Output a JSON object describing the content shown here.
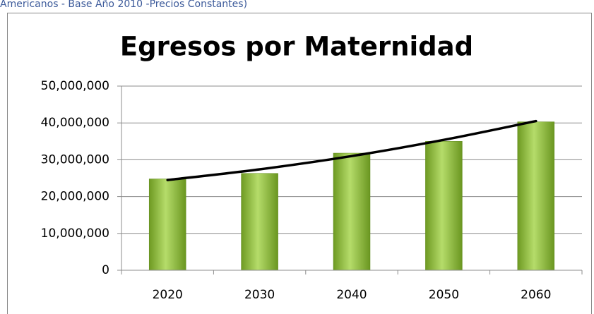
{
  "chart_data": {
    "type": "bar",
    "header": "Americanos - Base Año 2010 -Precios Constantes)",
    "title": "Egresos por Maternidad",
    "categories": [
      "2020",
      "2030",
      "2040",
      "2050",
      "2060"
    ],
    "values": [
      24800000,
      26300000,
      31800000,
      35000000,
      40300000
    ],
    "color": "#8dbf3a",
    "trendline": {
      "color": "#000000",
      "values": [
        24500000,
        27400000,
        31000000,
        35400000,
        40500000
      ]
    },
    "ylim": [
      0,
      50000000
    ],
    "yticks": [
      0,
      {
        "value": 10000000,
        "label": "10,000,000"
      },
      {
        "value": 20000000,
        "label": "20,000,000"
      },
      {
        "value": 30000000,
        "label": "30,000,000"
      },
      {
        "value": 40000000,
        "label": "40,000,000"
      },
      {
        "value": 50000000,
        "label": "50,000,000"
      }
    ],
    "grid": true
  }
}
